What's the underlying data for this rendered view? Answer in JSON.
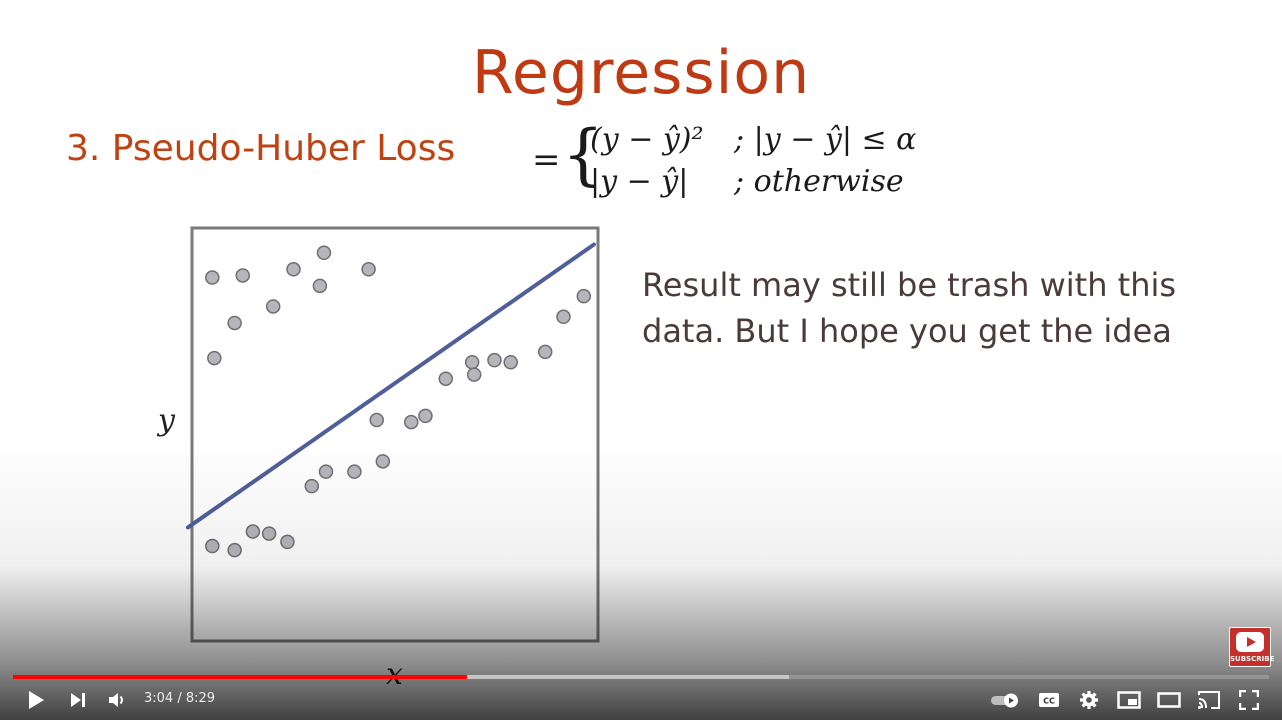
{
  "slide": {
    "title": "Regression",
    "subtitle": "3. Pseudo-Huber Loss",
    "formula": {
      "equals": "=",
      "brace": "{",
      "case1": "(y − ŷ)²",
      "cond1": "; |y − ŷ| ≤ α",
      "case2": "|y − ŷ|",
      "cond2": "; otherwise"
    },
    "note": "Result may still be trash with this data. But I hope you get the idea"
  },
  "chart_data": {
    "type": "scatter",
    "xlabel": "x",
    "ylabel": "y",
    "xlim": [
      0,
      100
    ],
    "ylim": [
      0,
      100
    ],
    "colors": {
      "points": "#b5b5bb",
      "point_stroke": "#6e6e74",
      "line": "#4f5f9b",
      "frame": "#7a7a7a"
    },
    "points": [
      {
        "x": 5,
        "y": 88
      },
      {
        "x": 12.5,
        "y": 88.5
      },
      {
        "x": 25,
        "y": 90
      },
      {
        "x": 32.5,
        "y": 94
      },
      {
        "x": 43.5,
        "y": 90
      },
      {
        "x": 10.5,
        "y": 77
      },
      {
        "x": 20,
        "y": 81
      },
      {
        "x": 31.5,
        "y": 86
      },
      {
        "x": 5.5,
        "y": 68.5
      },
      {
        "x": 5,
        "y": 23
      },
      {
        "x": 10.5,
        "y": 22
      },
      {
        "x": 15,
        "y": 26.5
      },
      {
        "x": 19,
        "y": 26
      },
      {
        "x": 23.5,
        "y": 24
      },
      {
        "x": 29.5,
        "y": 37.5
      },
      {
        "x": 33,
        "y": 41
      },
      {
        "x": 40,
        "y": 41
      },
      {
        "x": 47,
        "y": 43.5
      },
      {
        "x": 45.5,
        "y": 53.5
      },
      {
        "x": 54,
        "y": 53
      },
      {
        "x": 57.5,
        "y": 54.5
      },
      {
        "x": 62.5,
        "y": 63.5
      },
      {
        "x": 69,
        "y": 67.5
      },
      {
        "x": 69.5,
        "y": 64.5
      },
      {
        "x": 74.5,
        "y": 68
      },
      {
        "x": 78.5,
        "y": 67.5
      },
      {
        "x": 87,
        "y": 70
      },
      {
        "x": 91.5,
        "y": 78.5
      },
      {
        "x": 96.5,
        "y": 83.5
      }
    ],
    "fit_line": {
      "x": [
        -1,
        99
      ],
      "y": [
        27.5,
        96
      ]
    }
  },
  "player": {
    "time_current": "3:04",
    "time_separator": " / ",
    "time_total": "8:29",
    "progress_played": 0.3615,
    "progress_loaded": 0.618,
    "subscribe_label": "SUBSCRIBE",
    "icons": {
      "play": "play-icon",
      "next": "next-icon",
      "volume": "volume-icon",
      "autoplay": "autoplay-toggle-icon",
      "captions": "cc-icon",
      "settings": "gear-icon",
      "miniplayer": "miniplayer-icon",
      "theater": "theater-icon",
      "cast": "cast-icon",
      "fullscreen": "fullscreen-icon"
    }
  }
}
